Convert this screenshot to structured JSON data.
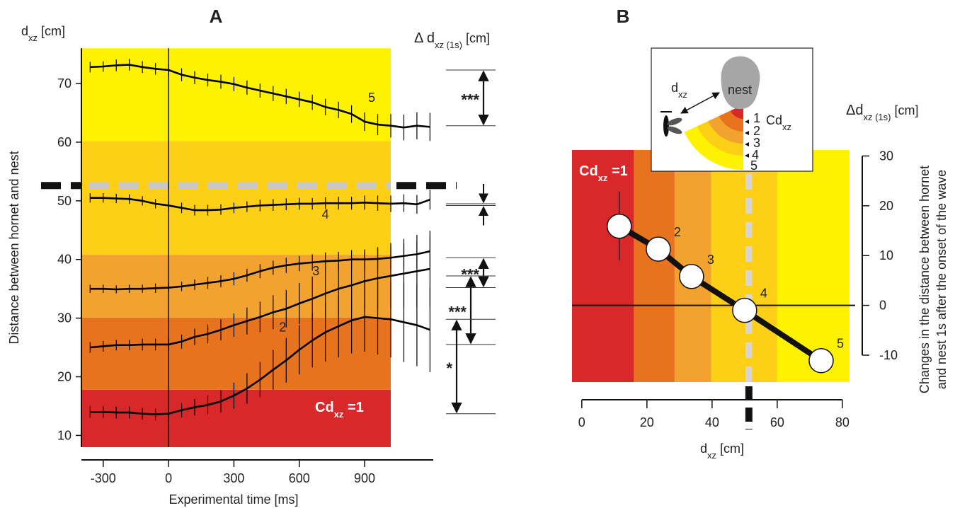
{
  "chart_data": [
    {
      "type": "line",
      "title": "A",
      "y_unit": [
        "d",
        "xz",
        " [cm]"
      ],
      "ylabel": "Distance between hornet and nest",
      "xlabel": "Experimental time [ms]",
      "delta_title": [
        "Δ d",
        "xz (1s)",
        " [cm]"
      ],
      "zone_label": [
        "Cd",
        "xz",
        " =1"
      ],
      "x": [
        -360,
        -300,
        -240,
        -180,
        -120,
        -60,
        0,
        60,
        120,
        180,
        240,
        300,
        360,
        420,
        480,
        540,
        600,
        660,
        720,
        780,
        840,
        900,
        960,
        1020,
        1080,
        1140,
        1200
      ],
      "series": [
        {
          "name": "5",
          "color": "#000000",
          "significance": "***",
          "values": [
            72.8,
            72.9,
            73.1,
            73.2,
            72.8,
            72.5,
            72.3,
            71.5,
            71.0,
            70.6,
            70.3,
            69.9,
            69.3,
            68.8,
            68.3,
            67.8,
            67.3,
            66.8,
            66.0,
            65.5,
            64.8,
            63.5,
            63.0,
            62.8,
            62.5,
            62.8,
            62.6
          ],
          "errors": [
            0.9,
            0.9,
            1.0,
            1.0,
            1.0,
            1.0,
            1.0,
            1.1,
            1.1,
            1.1,
            1.2,
            1.2,
            1.2,
            1.2,
            1.3,
            1.3,
            1.3,
            1.3,
            1.4,
            1.4,
            1.5,
            1.6,
            1.8,
            2.0,
            2.2,
            2.3,
            2.4
          ]
        },
        {
          "name": "4",
          "color": "#000000",
          "values": [
            50.5,
            50.5,
            50.4,
            50.3,
            50.0,
            49.5,
            49.2,
            48.8,
            48.4,
            48.4,
            48.5,
            48.8,
            49.0,
            49.2,
            49.3,
            49.4,
            49.5,
            49.5,
            49.6,
            49.6,
            49.6,
            49.7,
            49.6,
            49.5,
            49.6,
            49.4,
            50.2
          ],
          "errors": [
            0.8,
            0.8,
            0.8,
            0.8,
            0.8,
            0.8,
            0.8,
            0.9,
            0.9,
            0.9,
            0.9,
            0.9,
            0.9,
            1.0,
            1.0,
            1.0,
            1.0,
            1.0,
            1.0,
            1.1,
            1.1,
            1.2,
            1.3,
            1.4,
            1.5,
            1.6,
            1.7
          ]
        },
        {
          "name": "3",
          "color": "#000000",
          "significance": "***",
          "values": [
            35.0,
            35.0,
            34.9,
            35.0,
            35.0,
            35.1,
            35.2,
            35.4,
            35.7,
            36.0,
            36.3,
            36.7,
            37.3,
            38.0,
            38.6,
            39.0,
            39.3,
            39.5,
            39.7,
            39.8,
            40.0,
            40.0,
            40.1,
            40.3,
            40.6,
            40.9,
            41.4
          ],
          "errors": [
            0.7,
            0.7,
            0.7,
            0.7,
            0.7,
            0.8,
            0.8,
            0.8,
            0.9,
            1.0,
            1.0,
            1.1,
            1.1,
            1.2,
            1.2,
            1.3,
            1.3,
            1.4,
            1.5,
            1.5,
            1.6,
            1.7,
            1.8,
            2.0,
            2.2,
            2.4,
            2.6
          ]
        },
        {
          "name": "2",
          "color": "#000000",
          "significance": "***",
          "values": [
            25.0,
            25.2,
            25.4,
            25.4,
            25.5,
            25.5,
            25.5,
            26.0,
            26.8,
            27.3,
            28.0,
            28.8,
            29.5,
            30.2,
            31.0,
            31.6,
            32.5,
            33.3,
            34.2,
            35.0,
            35.6,
            36.3,
            36.8,
            37.2,
            37.6,
            38.0,
            38.4
          ],
          "errors": [
            0.9,
            0.9,
            0.9,
            0.9,
            1.0,
            1.0,
            1.0,
            1.2,
            1.4,
            1.6,
            1.8,
            2.0,
            2.3,
            2.6,
            2.9,
            3.2,
            3.5,
            3.8,
            4.1,
            4.4,
            4.7,
            5.0,
            5.3,
            5.6,
            5.9,
            6.2,
            6.5
          ]
        },
        {
          "color": "#000000",
          "significance": "*",
          "values": [
            14.0,
            14.0,
            13.9,
            13.9,
            13.7,
            13.6,
            13.7,
            14.3,
            14.8,
            15.2,
            15.8,
            16.8,
            18.0,
            19.5,
            21.2,
            22.8,
            24.6,
            26.2,
            27.6,
            28.6,
            29.6,
            30.2,
            30.0,
            29.8,
            29.3,
            28.8,
            28.0
          ],
          "errors": [
            1.0,
            1.0,
            1.0,
            1.0,
            1.0,
            1.0,
            1.0,
            1.2,
            1.4,
            1.6,
            1.9,
            2.2,
            2.6,
            3.0,
            3.4,
            3.8,
            4.2,
            4.6,
            5.0,
            5.3,
            5.6,
            5.9,
            6.2,
            6.5,
            6.8,
            7.0,
            7.2
          ]
        }
      ],
      "xlim": [
        -400,
        1215
      ],
      "ylim": [
        8,
        76
      ],
      "xticks": [
        -300,
        0,
        300,
        600,
        900
      ],
      "yticks": [
        10,
        20,
        30,
        40,
        50,
        60,
        70
      ],
      "zones": [
        {
          "from": 8,
          "to": 17.8,
          "color": "#d8282a"
        },
        {
          "from": 17.8,
          "to": 30.1,
          "color": "#e8731f"
        },
        {
          "from": 30.1,
          "to": 40.8,
          "color": "#f2a22e"
        },
        {
          "from": 40.8,
          "to": 60.2,
          "color": "#fdd017"
        },
        {
          "from": 60.2,
          "to": 76,
          "color": "#fff200"
        }
      ],
      "zone_end": 1020,
      "threshold": 52.6
    },
    {
      "type": "scatter",
      "title": "B",
      "xlabel": [
        "d",
        "xz",
        " [cm]"
      ],
      "ylabel": [
        "Δd",
        "xz (1s)",
        " [cm]"
      ],
      "ylabel_long": [
        "Changes in the distance between hornet",
        "and nest 1s after the onset of the wave"
      ],
      "zone_label": [
        "Cd",
        "xz",
        " =1"
      ],
      "x": [
        11.5,
        23.5,
        33.7,
        50,
        73.5
      ],
      "values": [
        15.9,
        11.3,
        5.8,
        -1.0,
        -11.1
      ],
      "errors": [
        6.9,
        null,
        null,
        null,
        null
      ],
      "labels": [
        null,
        "2",
        "3",
        "4",
        "5"
      ],
      "xlim": [
        -3,
        82.2
      ],
      "ylim": [
        -15.4,
        31.2
      ],
      "xticks": [
        0,
        20,
        40,
        60,
        80
      ],
      "yticks": [
        -10,
        0,
        10,
        20,
        30
      ],
      "zones": [
        {
          "from": -3,
          "to": 16,
          "color": "#d8282a"
        },
        {
          "from": 16,
          "to": 28.5,
          "color": "#e8731f"
        },
        {
          "from": 28.5,
          "to": 39.7,
          "color": "#f2a22e"
        },
        {
          "from": 39.7,
          "to": 60,
          "color": "#fdd017"
        },
        {
          "from": 60,
          "to": 82.2,
          "color": "#fff200"
        }
      ],
      "threshold": 51.3,
      "inset": {
        "nest": "nest",
        "distance": [
          "d",
          "xz"
        ],
        "levels": [
          "1",
          "2",
          "3",
          "4",
          "5"
        ],
        "cd": [
          "Cd",
          "xz"
        ]
      }
    }
  ]
}
